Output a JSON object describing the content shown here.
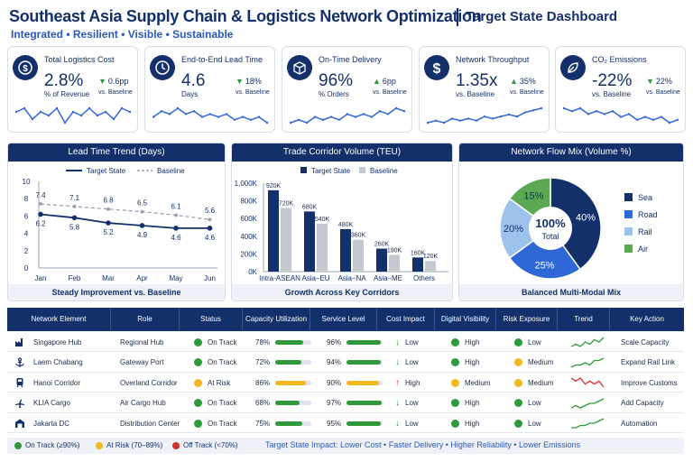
{
  "header": {
    "title": "Southeast Asia Supply Chain & Logistics Network Optimization",
    "subtitle": "Target State Dashboard",
    "tagline": "Integrated • Resilient • Visible • Sustainable"
  },
  "kpis": [
    {
      "icon": "dollar-coin-icon",
      "title": "Total Logistics Cost",
      "value": "2.8%",
      "sub": "% of Revenue",
      "delta": "0.6pp",
      "vs": "vs. Baseline",
      "trend": [
        6,
        7,
        4,
        6,
        5,
        7,
        3,
        6,
        5,
        7,
        5,
        6,
        4,
        7,
        6
      ]
    },
    {
      "icon": "clock-icon",
      "title": "End-to-End Lead Time",
      "value": "4.6",
      "sub": "Days",
      "delta": "18%",
      "vs": "vs. Baseline",
      "trend": [
        5,
        7,
        6,
        8,
        6,
        7,
        5,
        6,
        5,
        6,
        4,
        5,
        4,
        5,
        3
      ]
    },
    {
      "icon": "box-icon",
      "title": "On-Time Delivery",
      "value": "96%",
      "sub": "% Orders",
      "delta": "6pp",
      "vs": "vs. Baseline",
      "trend": [
        3,
        4,
        3,
        5,
        4,
        5,
        4,
        6,
        5,
        6,
        5,
        7,
        6,
        8,
        7
      ]
    },
    {
      "icon": "dollar-icon",
      "title": "Network Throughput",
      "value": "1.35x",
      "sub": "vs. Baseline",
      "delta": "35%",
      "vs": "vs. Baseline",
      "trend": [
        2,
        3,
        2,
        4,
        3,
        4,
        3,
        5,
        4,
        5,
        6,
        5,
        7,
        8,
        9
      ]
    },
    {
      "icon": "leaf-icon",
      "title": "CO₂ Emissions",
      "value": "-22%",
      "sub": "vs. Baseline",
      "delta": "22%",
      "vs": "vs. Baseline",
      "trend": [
        8,
        7,
        8,
        6,
        7,
        6,
        7,
        5,
        6,
        4,
        5,
        4,
        5,
        3,
        4
      ]
    }
  ],
  "lead_time": {
    "title": "Lead Time Trend (Days)",
    "footer": "Steady Improvement vs. Baseline",
    "legend_target": "Target State",
    "legend_baseline": "Baseline",
    "chart_data": {
      "type": "line",
      "x": [
        "Jan",
        "Feb",
        "Mar",
        "Apr",
        "May",
        "Jun"
      ],
      "series": [
        {
          "name": "Target State",
          "values": [
            6.2,
            5.8,
            5.2,
            4.9,
            4.6,
            4.6
          ]
        },
        {
          "name": "Baseline",
          "values": [
            7.4,
            7.1,
            6.8,
            6.5,
            6.1,
            5.6
          ]
        }
      ],
      "ylim": [
        0,
        10
      ],
      "yticks": [
        "0",
        "2",
        "4",
        "6",
        "8",
        "10"
      ]
    }
  },
  "corridor": {
    "title": "Trade Corridor Volume (TEU)",
    "footer": "Growth Across Key Corridors",
    "legend_target": "Target State",
    "legend_baseline": "Baseline",
    "chart_data": {
      "type": "bar",
      "categories": [
        "Intra-ASEAN",
        "Asia–EU",
        "Asia–NA",
        "Asia–ME",
        "Others"
      ],
      "series": [
        {
          "name": "Target State",
          "values": [
            920,
            680,
            480,
            260,
            160
          ],
          "labels": [
            "920K",
            "680K",
            "480K",
            "260K",
            "160K"
          ]
        },
        {
          "name": "Baseline",
          "values": [
            720,
            540,
            360,
            190,
            120
          ],
          "labels": [
            "720K",
            "540K",
            "360K",
            "190K",
            "120K"
          ]
        }
      ],
      "ylim": [
        0,
        1000
      ],
      "yticks": [
        "0K",
        "200K",
        "400K",
        "600K",
        "800K",
        "1,000K"
      ]
    }
  },
  "flow": {
    "title": "Network Flow Mix (Volume %)",
    "footer": "Balanced Multi-Modal Mix",
    "center_value": "100%",
    "center_label": "Total",
    "chart_data": {
      "type": "pie",
      "labels": [
        "Sea",
        "Road",
        "Rail",
        "Air"
      ],
      "values": [
        40,
        25,
        20,
        15
      ],
      "value_labels": [
        "40%",
        "25%",
        "20%",
        "15%"
      ],
      "colors": [
        "#13306b",
        "#2f67d6",
        "#9dc3ec",
        "#5aa852"
      ]
    }
  },
  "table": {
    "headers": [
      "Network Element",
      "Role",
      "Status",
      "Capacity Utilization",
      "Service Level",
      "Cost Impact",
      "Digital Visibility",
      "Risk Exposure",
      "Trend",
      "Key Action"
    ],
    "rows": [
      {
        "icon": "factory-icon",
        "element": "Singapore Hub",
        "role": "Regional Hub",
        "status": "On Track",
        "status_color": "#2f9a3c",
        "util": "78%",
        "util_v": 0.78,
        "util_color": "#2f9a3c",
        "service": "96%",
        "service_v": 0.96,
        "service_color": "#2f9a3c",
        "cost": "Low",
        "cost_dir": "down",
        "digital": "High",
        "digital_color": "#2f9a3c",
        "risk": "Low",
        "risk_color": "#2f9a3c",
        "trend_color": "#2f9a3c",
        "trend": [
          2,
          3,
          2,
          4,
          3,
          5,
          4,
          6
        ],
        "action": "Scale Capacity"
      },
      {
        "icon": "anchor-icon",
        "element": "Laem Chabang",
        "role": "Gateway Port",
        "status": "On Track",
        "status_color": "#2f9a3c",
        "util": "72%",
        "util_v": 0.72,
        "util_color": "#2f9a3c",
        "service": "94%",
        "service_v": 0.94,
        "service_color": "#2f9a3c",
        "cost": "Low",
        "cost_dir": "down",
        "digital": "High",
        "digital_color": "#2f9a3c",
        "risk": "Medium",
        "risk_color": "#f2b820",
        "trend_color": "#2f9a3c",
        "trend": [
          2,
          3,
          3,
          4,
          3,
          5,
          5,
          6
        ],
        "action": "Expand Rail Link"
      },
      {
        "icon": "train-icon",
        "element": "Hanoi Corridor",
        "role": "Overland Corridor",
        "status": "At Risk",
        "status_color": "#f2b820",
        "util": "86%",
        "util_v": 0.86,
        "util_color": "#f2b820",
        "service": "90%",
        "service_v": 0.9,
        "service_color": "#f2b820",
        "cost": "High",
        "cost_dir": "up",
        "digital": "Medium",
        "digital_color": "#f2b820",
        "risk": "Medium",
        "risk_color": "#f2b820",
        "trend_color": "#d03030",
        "trend": [
          5,
          4,
          5,
          3,
          4,
          3,
          4,
          2
        ],
        "action": "Improve Customs"
      },
      {
        "icon": "plane-icon",
        "element": "KLIA Cargo",
        "role": "Air Cargo Hub",
        "status": "On Track",
        "status_color": "#2f9a3c",
        "util": "68%",
        "util_v": 0.68,
        "util_color": "#2f9a3c",
        "service": "97%",
        "service_v": 0.97,
        "service_color": "#2f9a3c",
        "cost": "Low",
        "cost_dir": "down",
        "digital": "High",
        "digital_color": "#2f9a3c",
        "risk": "Low",
        "risk_color": "#2f9a3c",
        "trend_color": "#2f9a3c",
        "trend": [
          2,
          3,
          2,
          3,
          4,
          4,
          5,
          6
        ],
        "action": "Add Capacity"
      },
      {
        "icon": "warehouse-icon",
        "element": "Jakarta DC",
        "role": "Distribution Center",
        "status": "On Track",
        "status_color": "#2f9a3c",
        "util": "75%",
        "util_v": 0.75,
        "util_color": "#2f9a3c",
        "service": "95%",
        "service_v": 0.95,
        "service_color": "#2f9a3c",
        "cost": "Low",
        "cost_dir": "down",
        "digital": "High",
        "digital_color": "#2f9a3c",
        "risk": "Low",
        "risk_color": "#2f9a3c",
        "trend_color": "#2f9a3c",
        "trend": [
          2,
          2,
          3,
          3,
          4,
          4,
          5,
          6
        ],
        "action": "Automation"
      }
    ]
  },
  "legend": {
    "on_track": "On Track (≥90%)",
    "at_risk": "At Risk (70–89%)",
    "off_track": "Off Track (<70%)",
    "colors": {
      "on_track": "#2f9a3c",
      "at_risk": "#f2b820",
      "off_track": "#d03030"
    },
    "impact": "Target State Impact: Lower Cost • Faster Delivery • Higher Reliability • Lower Emissions"
  }
}
